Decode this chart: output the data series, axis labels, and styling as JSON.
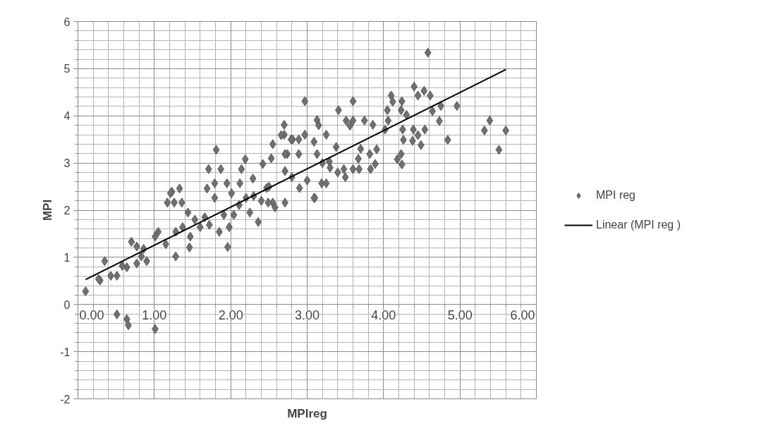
{
  "chart_data": {
    "type": "scatter",
    "xlabel": "MPIreg",
    "ylabel": "MPI",
    "xlim": [
      0,
      6
    ],
    "ylim": [
      -2,
      6
    ],
    "xticks": [
      {
        "value": 0,
        "label": "0.00"
      },
      {
        "value": 1,
        "label": "1.00"
      },
      {
        "value": 2,
        "label": "2.00"
      },
      {
        "value": 3,
        "label": "3.00"
      },
      {
        "value": 4,
        "label": "4.00"
      },
      {
        "value": 5,
        "label": "5.00"
      },
      {
        "value": 6,
        "label": "6.00"
      }
    ],
    "yticks": [
      -2,
      -1,
      0,
      1,
      2,
      3,
      4,
      5,
      6
    ],
    "grid": true,
    "legend": "right",
    "series": [
      {
        "name": "MPI reg",
        "color": "#707070",
        "marker": "diamond",
        "x": [
          4.58,
          4.4,
          4.53,
          4.45,
          4.61,
          4.1,
          4.12,
          4.24,
          4.05,
          4.23,
          4.3,
          4.64,
          4.75,
          4.96,
          4.73,
          4.06,
          2.97,
          3.6,
          3.41,
          3.13,
          3.15,
          3.51,
          3.6,
          3.56,
          3.75,
          3.86,
          4.02,
          4.25,
          4.39,
          4.54,
          4.45,
          4.26,
          4.38,
          4.49,
          4.84,
          5.39,
          5.32,
          5.6,
          5.51,
          4.23,
          4.18,
          4.24,
          3.89,
          3.83,
          3.82,
          3.91,
          3.6,
          3.68,
          3.48,
          3.67,
          3.38,
          3.25,
          2.97,
          2.7,
          2.7,
          2.81,
          2.89,
          2.74,
          3.09,
          3.13,
          3.29,
          2.71,
          2.9,
          2.71,
          3.1,
          3.19,
          3.25,
          3.0,
          2.66,
          2.79,
          2.55,
          2.89,
          1.81,
          1.71,
          1.87,
          2.19,
          2.14,
          2.42,
          2.53,
          2.71,
          2.29,
          1.79,
          1.95,
          1.69,
          2.12,
          2.01,
          2.47,
          2.55,
          1.23,
          1.33,
          1.17,
          1.36,
          1.26,
          1.21,
          1.79,
          1.44,
          1.53,
          1.66,
          1.37,
          1.28,
          1.47,
          1.28,
          1.46,
          1.15,
          1.05,
          1.01,
          0.86,
          0.77,
          0.7,
          0.83,
          0.9,
          0.77,
          0.64,
          0.58,
          0.51,
          0.43,
          0.35,
          0.29,
          0.27,
          0.1,
          0.51,
          0.64,
          0.66,
          1.01,
          1.85,
          1.98,
          1.96,
          2.04,
          2.11,
          1.91,
          2.36,
          2.25,
          2.49,
          2.58,
          3.09,
          2.2,
          1.72,
          1.6,
          3.4,
          3.5,
          3.3,
          3.2,
          2.8,
          2.5,
          2.3,
          2.4,
          3.7
        ],
        "values": [
          5.34,
          4.62,
          4.53,
          4.43,
          4.43,
          4.43,
          4.3,
          4.31,
          4.12,
          4.12,
          4.02,
          4.1,
          4.21,
          4.21,
          3.89,
          3.9,
          4.31,
          4.31,
          4.12,
          3.91,
          3.8,
          3.9,
          3.9,
          3.79,
          3.9,
          3.81,
          3.71,
          3.71,
          3.71,
          3.71,
          3.59,
          3.49,
          3.47,
          3.38,
          3.49,
          3.9,
          3.69,
          3.69,
          3.28,
          3.19,
          3.08,
          2.97,
          2.98,
          2.87,
          3.19,
          3.29,
          2.87,
          2.87,
          2.87,
          3.09,
          3.34,
          3.6,
          3.6,
          3.81,
          3.6,
          3.5,
          3.19,
          3.19,
          3.45,
          3.19,
          3.03,
          2.83,
          2.47,
          2.16,
          2.26,
          2.57,
          2.57,
          2.63,
          3.59,
          3.5,
          3.4,
          3.5,
          3.28,
          2.87,
          2.87,
          3.08,
          2.87,
          2.98,
          3.1,
          3.19,
          2.67,
          2.57,
          2.57,
          2.46,
          2.57,
          2.36,
          2.47,
          2.16,
          2.39,
          2.46,
          2.16,
          2.16,
          2.16,
          2.36,
          2.26,
          1.95,
          1.8,
          1.85,
          1.64,
          1.54,
          1.44,
          1.02,
          1.21,
          1.28,
          1.54,
          1.44,
          1.18,
          1.23,
          1.33,
          1.02,
          0.92,
          0.87,
          0.79,
          0.82,
          0.61,
          0.61,
          0.92,
          0.51,
          0.54,
          0.28,
          -0.21,
          -0.31,
          -0.44,
          -0.52,
          1.54,
          1.64,
          1.22,
          1.9,
          2.11,
          1.9,
          1.75,
          1.95,
          2.16,
          2.06,
          2.26,
          2.26,
          1.69,
          1.64,
          2.8,
          2.7,
          2.9,
          3.0,
          2.7,
          2.5,
          2.3,
          2.2,
          3.3
        ]
      },
      {
        "name": "Linear (MPI reg )",
        "color": "#000000",
        "type": "line",
        "line_style": "solid",
        "x": [
          0.1,
          5.6
        ],
        "values": [
          0.53,
          4.98
        ]
      }
    ]
  }
}
